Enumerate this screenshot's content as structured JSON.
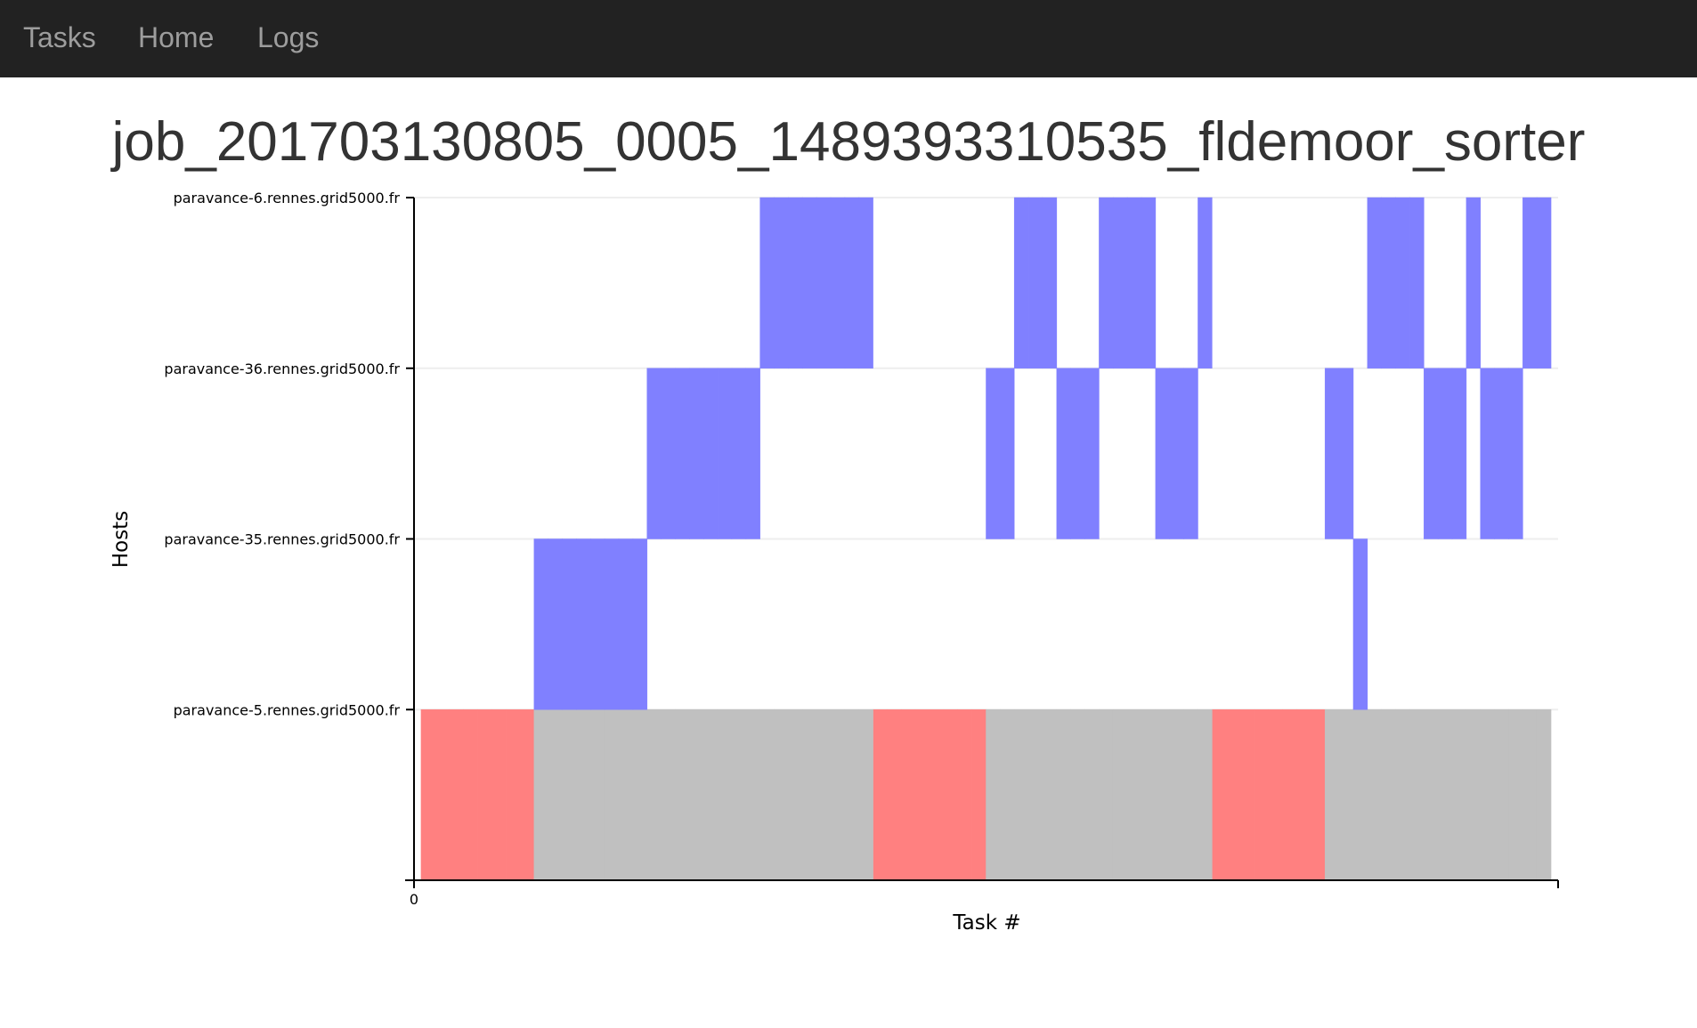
{
  "nav": {
    "items": [
      {
        "label": "Tasks"
      },
      {
        "label": "Home"
      },
      {
        "label": "Logs"
      }
    ]
  },
  "page": {
    "title": "job_201703130805_0005_1489393310535_fldemoor_sorter"
  },
  "chart_data": {
    "type": "bar",
    "xlabel": "Task #",
    "ylabel": "Hosts",
    "x_tick_labels": [
      "0"
    ],
    "hosts": [
      "paravance-5.rennes.grid5000.fr",
      "paravance-35.rennes.grid5000.fr",
      "paravance-36.rennes.grid5000.fr",
      "paravance-6.rennes.grid5000.fr"
    ],
    "colors": {
      "map": "#ff8080",
      "reduce": "#8080ff",
      "other": "#c0c0c0",
      "grid": "#eeeeee"
    },
    "x_domain": [
      0,
      81
    ],
    "series": [
      {
        "name": "red",
        "type": "map",
        "tasks": [
          {
            "start": 0.5,
            "end": 8.5,
            "host": 0
          },
          {
            "start": 32.5,
            "end": 40.5,
            "host": 0
          },
          {
            "start": 56.5,
            "end": 64.5,
            "host": 0
          }
        ]
      },
      {
        "name": "gray",
        "type": "other",
        "tasks": [
          {
            "start": 8.5,
            "end": 32.5,
            "host": 0
          },
          {
            "start": 40.5,
            "end": 56.5,
            "host": 0
          },
          {
            "start": 64.5,
            "end": 80.5,
            "host": 0
          }
        ]
      },
      {
        "name": "blue",
        "type": "reduce",
        "tasks": [
          {
            "start": 8.5,
            "end": 16.5,
            "host": 1
          },
          {
            "start": 16.5,
            "end": 24.5,
            "host": 2
          },
          {
            "start": 24.5,
            "end": 32.5,
            "host": 3
          },
          {
            "start": 40.5,
            "end": 42.5,
            "host": 2
          },
          {
            "start": 42.5,
            "end": 45.5,
            "host": 3
          },
          {
            "start": 45.5,
            "end": 48.5,
            "host": 2
          },
          {
            "start": 48.5,
            "end": 52.5,
            "host": 3
          },
          {
            "start": 52.5,
            "end": 55.5,
            "host": 2
          },
          {
            "start": 55.5,
            "end": 56.5,
            "host": 3
          },
          {
            "start": 64.5,
            "end": 66.5,
            "host": 2
          },
          {
            "start": 66.5,
            "end": 67.5,
            "host": 1
          },
          {
            "start": 67.5,
            "end": 71.5,
            "host": 3
          },
          {
            "start": 71.5,
            "end": 74.5,
            "host": 2
          },
          {
            "start": 74.5,
            "end": 75.5,
            "host": 3
          },
          {
            "start": 75.5,
            "end": 78.5,
            "host": 2
          },
          {
            "start": 78.5,
            "end": 80.5,
            "host": 3
          }
        ]
      }
    ]
  }
}
